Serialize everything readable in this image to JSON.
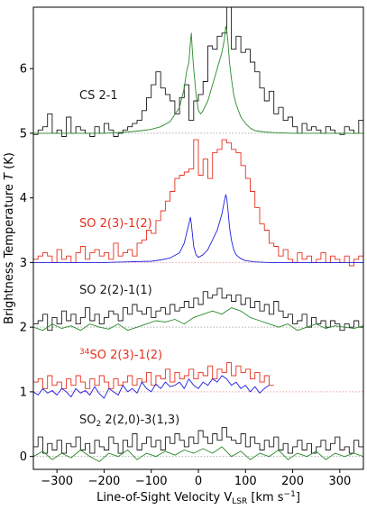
{
  "chart_data": {
    "type": "line",
    "title": "",
    "xlabel": "Line-of-Sight Velocity V",
    "xlabel_sub": "LSR",
    "xlabel_unit": " [km s",
    "xlabel_unit_sup": "−1",
    "xlabel_close": "]",
    "ylabel": "Brightness Temperature ",
    "ylabel_var": "T",
    "ylabel_unit": " (K)",
    "xlim": [
      -350,
      350
    ],
    "ylim": [
      -0.2,
      6.95
    ],
    "xticks": [
      -300,
      -200,
      -100,
      0,
      100,
      200,
      300
    ],
    "xtick_labels": [
      "−300",
      "−200",
      "−100",
      "0",
      "100",
      "200",
      "300"
    ],
    "yticks": [
      0,
      1,
      2,
      3,
      4,
      5,
      6
    ],
    "ytick_labels": [
      "0",
      "1",
      "2",
      "3",
      "4",
      "5",
      "6"
    ],
    "grid": false,
    "colors": {
      "black": "#1a1a1a",
      "green": "#2a8a2a",
      "red": "#e8301f",
      "blue": "#1f1fe0",
      "baseline_gray": "#b0b0b0",
      "baseline_pink": "#f4a0a0"
    },
    "annotations": [
      {
        "text": "CS 2-1",
        "color": "#1a1a1a"
      },
      {
        "text": "SO 2(3)-1(2)",
        "color": "#e8301f"
      },
      {
        "text": "SO 2(2)-1(1)",
        "color": "#1a1a1a"
      },
      {
        "pre_sup": "34",
        "text": "SO 2(3)-1(2)",
        "color": "#e8301f"
      },
      {
        "pre": "SO",
        "sub": "2",
        "text": " 2(2,0)-3(1,3)",
        "color": "#1a1a1a"
      }
    ],
    "baselines": [
      {
        "y": 5,
        "color": "gray"
      },
      {
        "y": 3,
        "color": "pink"
      },
      {
        "y": 2,
        "color": "gray"
      },
      {
        "y": 1,
        "color": "pink"
      },
      {
        "y": 0,
        "color": "gray"
      }
    ],
    "series": [
      {
        "color": "black",
        "style": "step",
        "x": [
          -350,
          -340,
          -330,
          -320,
          -310,
          -300,
          -290,
          -280,
          -270,
          -260,
          -250,
          -240,
          -230,
          -220,
          -210,
          -200,
          -190,
          -180,
          -170,
          -160,
          -150,
          -140,
          -130,
          -120,
          -110,
          -100,
          -90,
          -80,
          -70,
          -60,
          -50,
          -40,
          -30,
          -20,
          -10,
          0,
          10,
          20,
          30,
          40,
          50,
          60,
          70,
          80,
          90,
          100,
          110,
          120,
          130,
          140,
          150,
          160,
          170,
          180,
          190,
          200,
          210,
          220,
          230,
          240,
          250,
          260,
          270,
          280,
          290,
          300,
          310,
          320,
          330,
          340
        ],
        "y": [
          4.98,
          5.05,
          5.1,
          5.3,
          5.0,
          5.05,
          4.95,
          5.25,
          5.0,
          5.1,
          5.05,
          5.0,
          4.95,
          5.1,
          5.0,
          5.15,
          5.05,
          4.95,
          5.0,
          5.05,
          5.1,
          5.15,
          5.2,
          5.35,
          5.55,
          5.75,
          5.95,
          5.7,
          5.6,
          5.5,
          5.3,
          5.55,
          5.75,
          5.2,
          5.5,
          5.6,
          5.8,
          6.35,
          6.3,
          6.5,
          6.55,
          6.95,
          6.3,
          6.5,
          6.25,
          6.3,
          6.1,
          5.95,
          5.7,
          5.5,
          5.65,
          5.3,
          5.4,
          5.2,
          5.25,
          5.1,
          5.0,
          5.15,
          5.05,
          5.1,
          5.05,
          5.0,
          5.1,
          5.05,
          5.0,
          4.98,
          5.1,
          5.05,
          5.0,
          5.2
        ]
      },
      {
        "color": "green",
        "style": "line",
        "x": [
          -350,
          -300,
          -250,
          -200,
          -150,
          -120,
          -100,
          -80,
          -60,
          -40,
          -30,
          -25,
          -20,
          -17,
          -15,
          -13,
          -10,
          -5,
          0,
          5,
          10,
          20,
          30,
          40,
          50,
          55,
          58,
          60,
          63,
          66,
          70,
          75,
          80,
          90,
          100,
          110,
          120,
          140,
          160,
          200,
          250,
          300,
          350
        ],
        "y": [
          5.0,
          5.0,
          5.0,
          5.0,
          5.02,
          5.04,
          5.06,
          5.1,
          5.18,
          5.4,
          5.7,
          5.95,
          6.1,
          6.4,
          6.55,
          6.3,
          6.0,
          5.6,
          5.35,
          5.3,
          5.35,
          5.5,
          5.75,
          6.0,
          6.25,
          6.45,
          6.65,
          6.6,
          6.4,
          6.1,
          5.85,
          5.6,
          5.45,
          5.25,
          5.15,
          5.08,
          5.04,
          5.02,
          5.01,
          5.0,
          5.0,
          5.0,
          5.0
        ]
      },
      {
        "color": "red",
        "style": "step",
        "x": [
          -350,
          -340,
          -330,
          -320,
          -310,
          -300,
          -290,
          -280,
          -270,
          -260,
          -250,
          -240,
          -230,
          -220,
          -210,
          -200,
          -190,
          -180,
          -170,
          -160,
          -150,
          -140,
          -130,
          -120,
          -110,
          -100,
          -90,
          -80,
          -70,
          -60,
          -50,
          -40,
          -30,
          -20,
          -10,
          0,
          10,
          20,
          30,
          40,
          50,
          60,
          70,
          80,
          90,
          100,
          110,
          120,
          130,
          140,
          150,
          160,
          170,
          180,
          190,
          200,
          210,
          220,
          230,
          240,
          250,
          260,
          270,
          280,
          290,
          300,
          310,
          320,
          330,
          340
        ],
        "y": [
          3.05,
          3.1,
          3.15,
          3.1,
          3.0,
          3.2,
          3.05,
          3.1,
          3.0,
          3.15,
          3.25,
          3.05,
          3.15,
          3.2,
          3.1,
          3.15,
          3.05,
          3.3,
          3.1,
          3.15,
          3.2,
          3.1,
          3.3,
          3.35,
          3.5,
          3.45,
          3.65,
          3.8,
          3.95,
          4.1,
          4.3,
          4.35,
          4.4,
          4.45,
          4.9,
          4.35,
          4.6,
          4.3,
          4.7,
          4.75,
          4.9,
          4.85,
          4.75,
          4.7,
          4.5,
          4.3,
          4.1,
          3.85,
          3.6,
          3.5,
          3.3,
          3.25,
          3.1,
          3.2,
          3.05,
          3.0,
          3.15,
          3.05,
          3.1,
          3.0,
          3.05,
          3.15,
          3.0,
          3.1,
          3.05,
          3.0,
          3.1,
          2.95,
          3.05,
          3.1
        ]
      },
      {
        "color": "blue",
        "style": "line",
        "x": [
          -350,
          -300,
          -250,
          -200,
          -150,
          -100,
          -80,
          -60,
          -40,
          -30,
          -25,
          -20,
          -17,
          -15,
          -12,
          -10,
          -5,
          0,
          10,
          20,
          30,
          40,
          50,
          55,
          58,
          60,
          63,
          66,
          70,
          75,
          80,
          90,
          100,
          120,
          150,
          200,
          250,
          300,
          350
        ],
        "y": [
          3.0,
          3.0,
          3.0,
          3.0,
          3.01,
          3.02,
          3.04,
          3.07,
          3.15,
          3.3,
          3.45,
          3.6,
          3.7,
          3.6,
          3.4,
          3.25,
          3.12,
          3.08,
          3.12,
          3.2,
          3.35,
          3.5,
          3.75,
          3.95,
          4.05,
          4.0,
          3.8,
          3.55,
          3.35,
          3.2,
          3.12,
          3.06,
          3.03,
          3.01,
          3.0,
          3.0,
          3.0,
          3.0,
          3.0
        ]
      },
      {
        "color": "black",
        "style": "step",
        "x": [
          -350,
          -340,
          -330,
          -320,
          -310,
          -300,
          -290,
          -280,
          -270,
          -260,
          -250,
          -240,
          -230,
          -220,
          -210,
          -200,
          -190,
          -180,
          -170,
          -160,
          -150,
          -140,
          -130,
          -120,
          -110,
          -100,
          -90,
          -80,
          -70,
          -60,
          -50,
          -40,
          -30,
          -20,
          -10,
          0,
          10,
          20,
          30,
          40,
          50,
          60,
          70,
          80,
          90,
          100,
          110,
          120,
          130,
          140,
          150,
          160,
          170,
          180,
          190,
          200,
          210,
          220,
          230,
          240,
          250,
          260,
          270,
          280,
          290,
          300,
          310,
          320,
          330,
          340
        ],
        "y": [
          2.05,
          2.1,
          2.2,
          1.95,
          2.15,
          2.05,
          2.25,
          2.1,
          2.2,
          2.05,
          2.15,
          2.3,
          2.1,
          2.2,
          2.05,
          2.15,
          2.25,
          2.2,
          2.1,
          2.3,
          2.2,
          2.35,
          2.25,
          2.2,
          2.3,
          2.15,
          2.25,
          2.3,
          2.2,
          2.35,
          2.25,
          2.3,
          2.4,
          2.3,
          2.45,
          2.35,
          2.55,
          2.45,
          2.5,
          2.6,
          2.45,
          2.5,
          2.4,
          2.5,
          2.35,
          2.45,
          2.3,
          2.4,
          2.25,
          2.35,
          2.2,
          2.4,
          2.25,
          2.15,
          2.2,
          2.05,
          2.1,
          2.2,
          2.0,
          2.15,
          2.05,
          2.1,
          2.0,
          2.1,
          2.05,
          1.95,
          2.05,
          2.0,
          2.1,
          2.0
        ]
      },
      {
        "color": "green",
        "style": "line",
        "x": [
          -350,
          -330,
          -310,
          -290,
          -270,
          -250,
          -230,
          -210,
          -190,
          -170,
          -150,
          -130,
          -110,
          -90,
          -70,
          -50,
          -30,
          -10,
          10,
          30,
          50,
          70,
          90,
          110,
          130,
          150,
          170,
          190,
          210,
          230,
          250,
          270,
          290,
          310,
          330,
          350
        ],
        "y": [
          2.0,
          1.95,
          2.05,
          1.98,
          2.02,
          1.95,
          2.05,
          2.0,
          1.97,
          2.05,
          1.95,
          2.0,
          2.05,
          2.1,
          2.08,
          2.12,
          2.05,
          2.15,
          2.2,
          2.25,
          2.2,
          2.3,
          2.25,
          2.15,
          2.1,
          2.05,
          2.0,
          2.05,
          1.95,
          2.0,
          2.05,
          1.98,
          2.02,
          2.0,
          1.98,
          2.02
        ]
      },
      {
        "color": "red",
        "style": "step",
        "x": [
          -350,
          -340,
          -330,
          -320,
          -310,
          -300,
          -290,
          -280,
          -270,
          -260,
          -250,
          -240,
          -230,
          -220,
          -210,
          -200,
          -190,
          -180,
          -170,
          -160,
          -150,
          -140,
          -130,
          -120,
          -110,
          -100,
          -90,
          -80,
          -70,
          -60,
          -50,
          -40,
          -30,
          -20,
          -10,
          0,
          10,
          20,
          30,
          40,
          50,
          60,
          70,
          80,
          90,
          100,
          110,
          120,
          130,
          140,
          150
        ],
        "y": [
          1.15,
          1.2,
          1.05,
          1.25,
          1.1,
          1.15,
          1.05,
          1.2,
          1.1,
          1.25,
          1.15,
          1.05,
          1.2,
          1.1,
          1.25,
          1.15,
          1.05,
          1.2,
          1.1,
          1.15,
          1.25,
          1.1,
          1.2,
          1.15,
          1.3,
          1.1,
          1.25,
          1.2,
          1.35,
          1.15,
          1.3,
          1.2,
          1.25,
          1.35,
          1.2,
          1.3,
          1.25,
          1.4,
          1.2,
          1.35,
          1.3,
          1.45,
          1.25,
          1.4,
          1.3,
          1.35,
          1.2,
          1.3,
          1.15,
          1.25,
          1.1
        ]
      },
      {
        "color": "blue",
        "style": "line",
        "x": [
          -350,
          -340,
          -330,
          -320,
          -310,
          -300,
          -290,
          -280,
          -270,
          -260,
          -250,
          -240,
          -230,
          -220,
          -210,
          -200,
          -190,
          -180,
          -170,
          -160,
          -150,
          -140,
          -130,
          -120,
          -110,
          -100,
          -90,
          -80,
          -70,
          -60,
          -50,
          -40,
          -30,
          -20,
          -10,
          0,
          10,
          20,
          30,
          40,
          50,
          60,
          70,
          80,
          90,
          100,
          110,
          120,
          130,
          140,
          150
        ],
        "y": [
          1.0,
          0.95,
          1.05,
          0.98,
          1.02,
          0.95,
          1.05,
          1.0,
          0.92,
          1.05,
          0.98,
          1.02,
          0.95,
          1.08,
          0.97,
          0.9,
          1.05,
          1.0,
          0.95,
          1.1,
          1.0,
          1.05,
          0.98,
          1.15,
          1.05,
          1.0,
          1.12,
          1.05,
          1.15,
          1.08,
          1.1,
          1.15,
          1.05,
          1.2,
          1.1,
          1.05,
          1.15,
          1.1,
          1.2,
          1.15,
          1.25,
          1.2,
          1.1,
          1.15,
          1.05,
          1.1,
          1.0,
          1.08,
          0.98,
          1.05,
          1.1
        ]
      },
      {
        "color": "black",
        "style": "step",
        "x": [
          -350,
          -340,
          -330,
          -320,
          -310,
          -300,
          -290,
          -280,
          -270,
          -260,
          -250,
          -240,
          -230,
          -220,
          -210,
          -200,
          -190,
          -180,
          -170,
          -160,
          -150,
          -140,
          -130,
          -120,
          -110,
          -100,
          -90,
          -80,
          -70,
          -60,
          -50,
          -40,
          -30,
          -20,
          -10,
          0,
          10,
          20,
          30,
          40,
          50,
          60,
          70,
          80,
          90,
          100,
          110,
          120,
          130,
          140,
          150,
          160,
          170,
          180,
          190,
          200,
          210,
          220,
          230,
          240,
          250,
          260,
          270,
          280,
          290,
          300,
          310,
          320,
          330,
          340
        ],
        "y": [
          0.15,
          0.3,
          0.05,
          0.2,
          0.1,
          0.25,
          0.05,
          0.2,
          0.15,
          0.3,
          0.1,
          0.2,
          0.05,
          0.25,
          0.15,
          0.1,
          0.3,
          0.2,
          0.05,
          0.25,
          0.15,
          0.35,
          0.1,
          0.2,
          0.3,
          0.15,
          0.25,
          0.1,
          0.3,
          0.2,
          0.35,
          0.25,
          0.15,
          0.3,
          0.2,
          0.4,
          0.3,
          0.2,
          0.35,
          0.25,
          0.45,
          0.3,
          0.25,
          0.2,
          0.35,
          0.15,
          0.3,
          0.2,
          0.1,
          0.25,
          0.15,
          0.3,
          0.1,
          0.2,
          0.05,
          0.15,
          0.25,
          0.1,
          0.2,
          0.05,
          0.15,
          0.25,
          0.1,
          0.2,
          0.3,
          0.1,
          0.15,
          0.05,
          0.25,
          0.15
        ]
      },
      {
        "color": "green",
        "style": "line",
        "x": [
          -350,
          -330,
          -310,
          -290,
          -270,
          -250,
          -230,
          -210,
          -190,
          -170,
          -150,
          -130,
          -110,
          -90,
          -70,
          -50,
          -30,
          -10,
          10,
          30,
          50,
          70,
          90,
          110,
          130,
          150,
          170,
          190,
          210,
          230,
          250,
          270,
          290,
          310,
          330,
          350
        ],
        "y": [
          0.0,
          0.08,
          -0.05,
          0.05,
          -0.02,
          0.1,
          0.0,
          -0.08,
          0.05,
          0.0,
          0.1,
          -0.05,
          0.05,
          0.0,
          0.08,
          0.02,
          0.1,
          0.05,
          0.12,
          0.05,
          0.15,
          0.0,
          0.08,
          -0.05,
          0.05,
          0.0,
          0.1,
          -0.05,
          0.05,
          0.0,
          0.08,
          -0.05,
          0.05,
          0.0,
          0.05,
          0.0
        ]
      }
    ]
  }
}
